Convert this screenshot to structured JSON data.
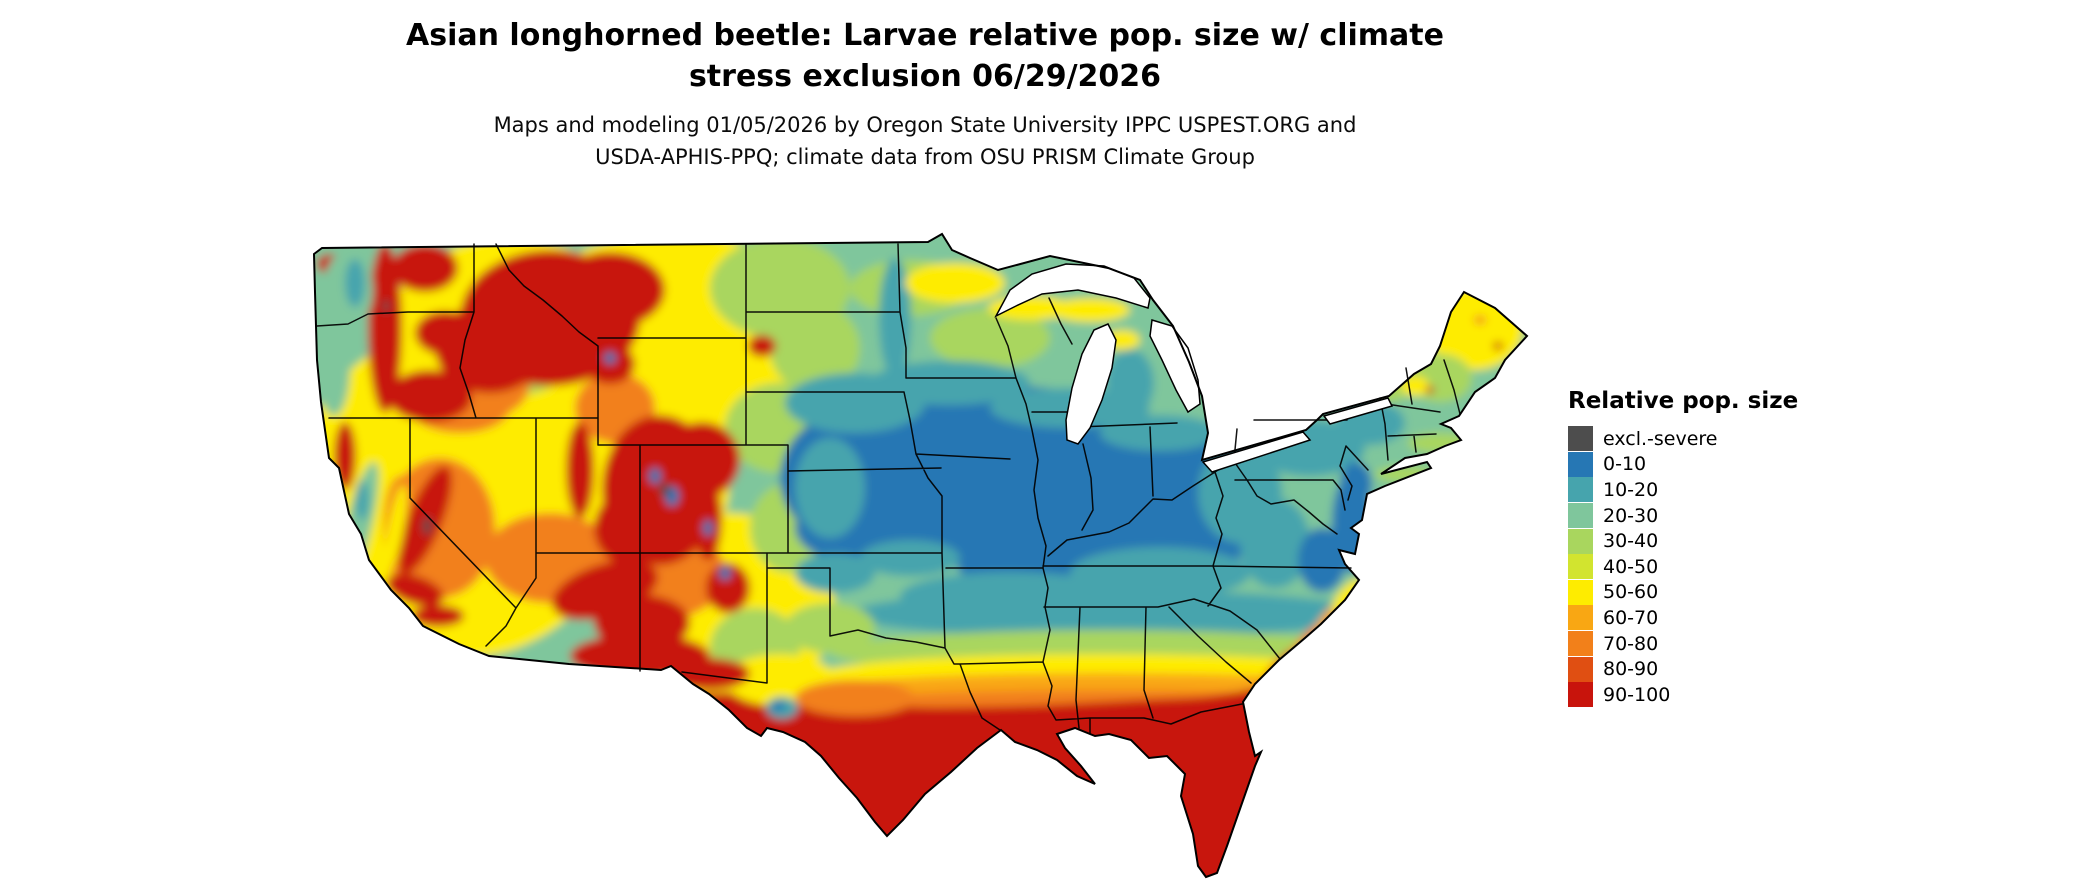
{
  "title": {
    "line1": "Asian longhorned beetle: Larvae relative pop. size w/ climate",
    "line2": "stress exclusion 06/29/2026"
  },
  "subtitle": {
    "line1": "Maps and modeling 01/05/2026 by Oregon State University IPPC USPEST.ORG and",
    "line2": "USDA-APHIS-PPQ; climate data from OSU PRISM Climate Group"
  },
  "legend": {
    "title": "Relative pop. size",
    "items": [
      {
        "label": "excl.-severe",
        "color": "#4d4d4d"
      },
      {
        "label": "0-10",
        "color": "#2677b4"
      },
      {
        "label": "10-20",
        "color": "#46a4ad"
      },
      {
        "label": "20-30",
        "color": "#7fc69c"
      },
      {
        "label": "30-40",
        "color": "#a9d65e"
      },
      {
        "label": "40-50",
        "color": "#d2e42f"
      },
      {
        "label": "50-60",
        "color": "#feec00"
      },
      {
        "label": "60-70",
        "color": "#f9a713"
      },
      {
        "label": "70-80",
        "color": "#f2801a"
      },
      {
        "label": "80-90",
        "color": "#e04f12"
      },
      {
        "label": "90-100",
        "color": "#c8140c"
      }
    ]
  },
  "map": {
    "region": "Contiguous United States",
    "kind": "raster population-index map with state boundaries"
  }
}
